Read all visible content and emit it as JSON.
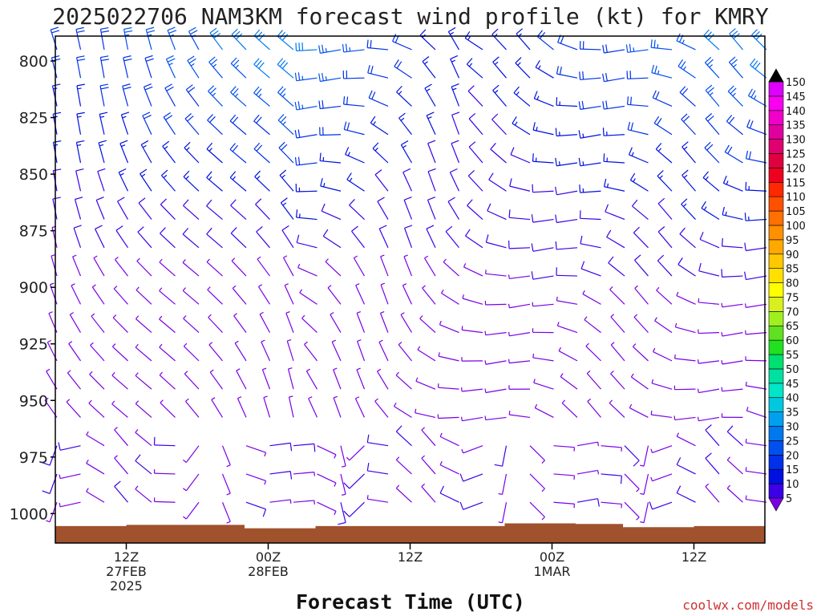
{
  "chart_data": {
    "type": "wind_barb_time_height",
    "title": "2025022706 NAM3KM forecast wind profile (kt) for KMRY",
    "xlabel": "Forecast Time (UTC)",
    "units": "kt",
    "y_axis": {
      "label": "",
      "ticks": [
        800,
        825,
        850,
        875,
        900,
        925,
        950,
        975,
        1000
      ],
      "range_hpa": [
        789,
        1013
      ],
      "inverted": true
    },
    "x_axis": {
      "ticks": [
        {
          "line1": "12Z",
          "line2": "27FEB",
          "line3": "2025",
          "hour": 6
        },
        {
          "line1": "00Z",
          "line2": "28FEB",
          "line3": "",
          "hour": 18
        },
        {
          "line1": "12Z",
          "line2": "",
          "line3": "",
          "hour": 30
        },
        {
          "line1": "00Z",
          "line2": "1MAR",
          "line3": "",
          "hour": 42
        },
        {
          "line1": "12Z",
          "line2": "",
          "line3": "",
          "hour": 54
        }
      ],
      "range_hours": [
        0,
        60
      ],
      "step_hours": 2
    },
    "colorbar": {
      "levels": [
        5,
        10,
        15,
        20,
        25,
        30,
        35,
        40,
        45,
        50,
        55,
        60,
        65,
        70,
        75,
        80,
        85,
        90,
        95,
        100,
        105,
        110,
        115,
        120,
        125,
        130,
        135,
        140,
        145,
        150
      ],
      "colors": [
        "#7a00e6",
        "#3b00e8",
        "#0010e0",
        "#0030e8",
        "#0050f0",
        "#0078f0",
        "#00a0f0",
        "#00c8e0",
        "#00e6c8",
        "#00e0a0",
        "#00e070",
        "#20e020",
        "#60e020",
        "#a0f020",
        "#d8f020",
        "#ffff00",
        "#ffe000",
        "#ffc800",
        "#ffa800",
        "#ff9000",
        "#ff7000",
        "#ff5000",
        "#ff2800",
        "#f00020",
        "#e00040",
        "#e00070",
        "#e000a0",
        "#f000c8",
        "#f800f0",
        "#e000ff"
      ]
    },
    "terrain": {
      "color": "#a0522d"
    },
    "wind_profile_description": "Surface-1000hPa light (5-10 kt) variable winds; 800-875 hPa stronger northwesterly 20-40 kt flow early, weakening mid-period, strengthening again 15-30 kt late."
  },
  "credit": "coolwx.com/models"
}
